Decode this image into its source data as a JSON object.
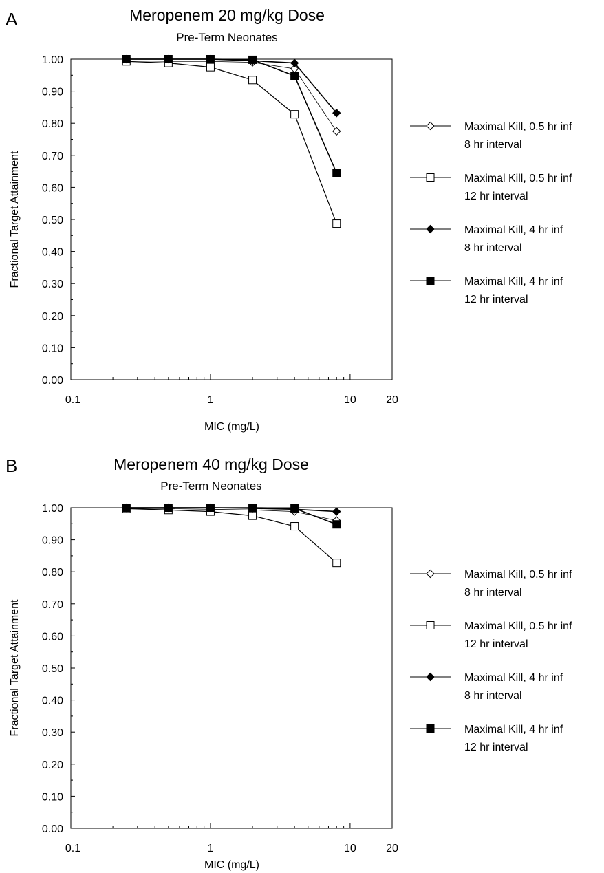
{
  "chart_data": [
    {
      "type": "line",
      "panel_label": "A",
      "title": "Meropenem 20 mg/kg Dose",
      "subtitle": "Pre-Term Neonates",
      "xlabel": "MIC (mg/L)",
      "ylabel": "Fractional Target Attainment",
      "x_scale": "log",
      "xlim": [
        0.1,
        20
      ],
      "ylim": [
        0,
        1
      ],
      "x_ticklabels": [
        "0.1",
        "1",
        "10",
        "20"
      ],
      "y_ticklabels": [
        "0.00",
        "0.10",
        "0.20",
        "0.30",
        "0.40",
        "0.50",
        "0.60",
        "0.70",
        "0.80",
        "0.90",
        "1.00"
      ],
      "x": [
        0.25,
        0.5,
        1,
        2,
        4,
        8
      ],
      "legend_position": "right",
      "series": [
        {
          "name": "Maximal Kill, 0.5 hr inf",
          "name_line2": "8 hr interval",
          "marker": "diamond-open",
          "values": [
            0.995,
            0.993,
            0.993,
            0.99,
            0.97,
            0.775
          ]
        },
        {
          "name": "Maximal Kill, 0.5 hr inf",
          "name_line2": "12 hr interval",
          "marker": "square-open",
          "values": [
            0.993,
            0.988,
            0.975,
            0.935,
            0.828,
            0.487
          ]
        },
        {
          "name": "Maximal Kill, 4 hr inf",
          "name_line2": "8 hr interval",
          "marker": "diamond-filled",
          "values": [
            1.0,
            1.0,
            1.0,
            0.995,
            0.988,
            0.832
          ]
        },
        {
          "name": "Maximal Kill, 4 hr inf",
          "name_line2": "12 hr interval",
          "marker": "square-filled",
          "values": [
            1.0,
            1.0,
            1.0,
            0.998,
            0.948,
            0.645
          ]
        }
      ]
    },
    {
      "type": "line",
      "panel_label": "B",
      "title": "Meropenem 40 mg/kg Dose",
      "subtitle": "Pre-Term Neonates",
      "xlabel": "MIC (mg/L)",
      "ylabel": "Fractional Target Attainment",
      "x_scale": "log",
      "xlim": [
        0.1,
        20
      ],
      "ylim": [
        0,
        1
      ],
      "x_ticklabels": [
        "0.1",
        "1",
        "10",
        "20"
      ],
      "y_ticklabels": [
        "0.00",
        "0.10",
        "0.20",
        "0.30",
        "0.40",
        "0.50",
        "0.60",
        "0.70",
        "0.80",
        "0.90",
        "1.00"
      ],
      "x": [
        0.25,
        0.5,
        1,
        2,
        4,
        8
      ],
      "legend_position": "right",
      "series": [
        {
          "name": "Maximal Kill, 0.5 hr inf",
          "name_line2": "8 hr interval",
          "marker": "diamond-open",
          "values": [
            0.998,
            0.997,
            0.995,
            0.993,
            0.988,
            0.96
          ]
        },
        {
          "name": "Maximal Kill, 0.5 hr inf",
          "name_line2": "12 hr interval",
          "marker": "square-open",
          "values": [
            0.997,
            0.993,
            0.988,
            0.975,
            0.942,
            0.828
          ]
        },
        {
          "name": "Maximal Kill, 4 hr inf",
          "name_line2": "8 hr interval",
          "marker": "diamond-filled",
          "values": [
            1.0,
            1.0,
            1.0,
            0.998,
            0.995,
            0.988
          ]
        },
        {
          "name": "Maximal Kill, 4 hr inf",
          "name_line2": "12 hr interval",
          "marker": "square-filled",
          "values": [
            1.0,
            1.0,
            1.0,
            1.0,
            0.998,
            0.948
          ]
        }
      ]
    }
  ]
}
